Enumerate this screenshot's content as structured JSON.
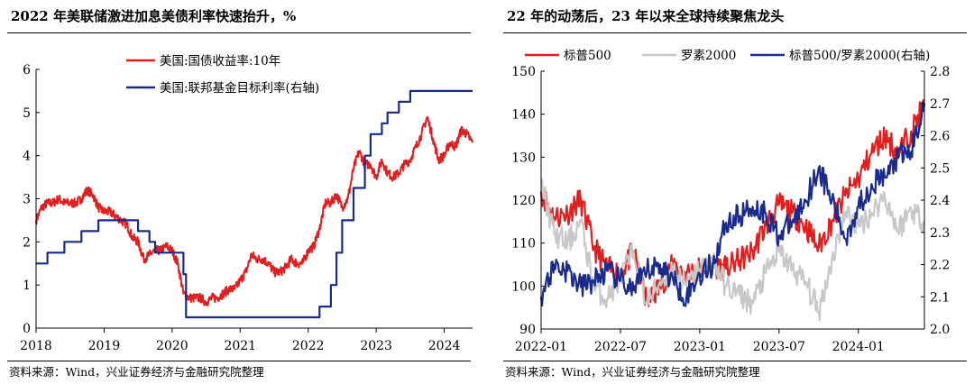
{
  "left": {
    "title": "2022 年美联储激进加息美债利率快速抬升，%",
    "source": "资料来源：Wind，兴业证券经济与金融研究院整理",
    "chart_data": {
      "type": "line",
      "x_ticks": [
        "2018",
        "2019",
        "2020",
        "2021",
        "2022",
        "2023",
        "2024"
      ],
      "xlim": [
        "2018-01",
        "2024-06"
      ],
      "ylim": [
        0,
        6
      ],
      "y_ticks": [
        "0",
        "1",
        "2",
        "3",
        "4",
        "5",
        "6"
      ],
      "y2lim": [
        0,
        6
      ],
      "y2_ticks": [],
      "legend_position": "top-center",
      "grid": false,
      "series": [
        {
          "name": "美国:国债收益率:10年",
          "axis": "left",
          "color": "#e02020",
          "x": [
            "2018-01",
            "2018-02",
            "2018-03",
            "2018-04",
            "2018-05",
            "2018-06",
            "2018-07",
            "2018-08",
            "2018-09",
            "2018-10",
            "2018-11",
            "2018-12",
            "2019-01",
            "2019-02",
            "2019-03",
            "2019-04",
            "2019-05",
            "2019-06",
            "2019-07",
            "2019-08",
            "2019-09",
            "2019-10",
            "2019-11",
            "2019-12",
            "2020-01",
            "2020-02",
            "2020-03",
            "2020-04",
            "2020-05",
            "2020-06",
            "2020-07",
            "2020-08",
            "2020-09",
            "2020-10",
            "2020-11",
            "2020-12",
            "2021-01",
            "2021-02",
            "2021-03",
            "2021-04",
            "2021-05",
            "2021-06",
            "2021-07",
            "2021-08",
            "2021-09",
            "2021-10",
            "2021-11",
            "2021-12",
            "2022-01",
            "2022-02",
            "2022-03",
            "2022-04",
            "2022-05",
            "2022-06",
            "2022-07",
            "2022-08",
            "2022-09",
            "2022-10",
            "2022-11",
            "2022-12",
            "2023-01",
            "2023-02",
            "2023-03",
            "2023-04",
            "2023-05",
            "2023-06",
            "2023-07",
            "2023-08",
            "2023-09",
            "2023-10",
            "2023-11",
            "2023-12",
            "2024-01",
            "2024-02",
            "2024-03",
            "2024-04",
            "2024-05",
            "2024-06"
          ],
          "values": [
            2.5,
            2.8,
            2.9,
            2.9,
            3.0,
            2.9,
            2.9,
            2.9,
            3.0,
            3.2,
            3.1,
            2.8,
            2.7,
            2.7,
            2.6,
            2.5,
            2.4,
            2.1,
            2.0,
            1.6,
            1.7,
            1.8,
            1.8,
            1.9,
            1.8,
            1.5,
            0.8,
            0.7,
            0.7,
            0.7,
            0.6,
            0.7,
            0.7,
            0.8,
            0.9,
            0.9,
            1.1,
            1.3,
            1.7,
            1.6,
            1.6,
            1.5,
            1.3,
            1.3,
            1.4,
            1.6,
            1.5,
            1.5,
            1.8,
            1.9,
            2.3,
            2.9,
            2.9,
            3.1,
            2.8,
            3.0,
            3.7,
            4.1,
            3.8,
            3.8,
            3.5,
            3.9,
            3.6,
            3.5,
            3.6,
            3.8,
            3.9,
            4.2,
            4.5,
            4.9,
            4.4,
            3.9,
            4.0,
            4.3,
            4.2,
            4.6,
            4.5,
            4.3
          ]
        },
        {
          "name": "美国:联邦基金目标利率(右轴)",
          "axis": "right",
          "color": "#1a2b8c",
          "x": [
            "2018-01",
            "2018-03",
            "2018-06",
            "2018-09",
            "2018-12",
            "2019-07",
            "2019-09",
            "2019-10",
            "2020-03",
            "2020-03-15",
            "2022-03",
            "2022-05",
            "2022-06",
            "2022-07",
            "2022-09",
            "2022-11",
            "2022-12",
            "2023-02",
            "2023-03",
            "2023-05",
            "2023-07",
            "2024-06"
          ],
          "values": [
            1.5,
            1.75,
            2.0,
            2.25,
            2.5,
            2.25,
            2.0,
            1.75,
            1.25,
            0.25,
            0.5,
            1.0,
            1.75,
            2.5,
            3.25,
            4.0,
            4.5,
            4.75,
            5.0,
            5.25,
            5.5,
            5.5
          ],
          "step": true
        }
      ]
    }
  },
  "right": {
    "title": "22 年的动荡后，23 年以来全球持续聚焦龙头",
    "source": "资料来源：Wind，兴业证券经济与金融研究院整理",
    "chart_data": {
      "type": "line",
      "x_ticks": [
        "2022-01",
        "2022-07",
        "2023-01",
        "2023-07",
        "2024-01"
      ],
      "xlim": [
        "2022-01",
        "2024-06"
      ],
      "ylim": [
        90,
        150
      ],
      "y_ticks": [
        "90",
        "100",
        "110",
        "120",
        "130",
        "140",
        "150"
      ],
      "y2lim": [
        2.0,
        2.8
      ],
      "y2_ticks": [
        "2.0",
        "2.1",
        "2.2",
        "2.3",
        "2.4",
        "2.5",
        "2.6",
        "2.7",
        "2.8"
      ],
      "legend_position": "top",
      "grid": false,
      "series": [
        {
          "name": "标普500",
          "axis": "left",
          "color": "#e02020",
          "x": [
            "2022-01",
            "2022-02",
            "2022-03",
            "2022-04",
            "2022-05",
            "2022-06",
            "2022-07",
            "2022-08",
            "2022-09",
            "2022-10",
            "2022-11",
            "2022-12",
            "2023-01",
            "2023-02",
            "2023-03",
            "2023-04",
            "2023-05",
            "2023-06",
            "2023-07",
            "2023-08",
            "2023-09",
            "2023-10",
            "2023-11",
            "2023-12",
            "2024-01",
            "2024-02",
            "2024-03",
            "2024-04",
            "2024-05",
            "2024-06"
          ],
          "values": [
            122,
            116,
            117,
            120,
            109,
            104,
            103,
            108,
            96,
            100,
            105,
            103,
            104,
            105,
            104,
            106,
            108,
            114,
            119,
            117,
            114,
            109,
            115,
            121,
            125,
            131,
            135,
            131,
            136,
            142
          ]
        },
        {
          "name": "罗素2000",
          "axis": "left",
          "color": "#c8c8c8",
          "x": [
            "2022-01",
            "2022-02",
            "2022-03",
            "2022-04",
            "2022-05",
            "2022-06",
            "2022-07",
            "2022-08",
            "2022-09",
            "2022-10",
            "2022-11",
            "2022-12",
            "2023-01",
            "2023-02",
            "2023-03",
            "2023-04",
            "2023-05",
            "2023-06",
            "2023-07",
            "2023-08",
            "2023-09",
            "2023-10",
            "2023-11",
            "2023-12",
            "2024-01",
            "2024-02",
            "2024-03",
            "2024-04",
            "2024-05",
            "2024-06"
          ],
          "values": [
            124,
            112,
            110,
            115,
            100,
            97,
            102,
            108,
            96,
            101,
            104,
            100,
            104,
            106,
            100,
            98,
            96,
            103,
            108,
            104,
            101,
            94,
            106,
            117,
            114,
            117,
            121,
            113,
            118,
            115
          ]
        },
        {
          "name": "标普500/罗素2000(右轴)",
          "axis": "right",
          "color": "#1a2b8c",
          "x": [
            "2022-01",
            "2022-02",
            "2022-03",
            "2022-04",
            "2022-05",
            "2022-06",
            "2022-07",
            "2022-08",
            "2022-09",
            "2022-10",
            "2022-11",
            "2022-12",
            "2023-01",
            "2023-02",
            "2023-03",
            "2023-04",
            "2023-05",
            "2023-06",
            "2023-07",
            "2023-08",
            "2023-09",
            "2023-10",
            "2023-11",
            "2023-12",
            "2024-01",
            "2024-02",
            "2024-03",
            "2024-04",
            "2024-05",
            "2024-06"
          ],
          "values": [
            2.1,
            2.2,
            2.18,
            2.13,
            2.15,
            2.18,
            2.15,
            2.12,
            2.18,
            2.2,
            2.15,
            2.1,
            2.17,
            2.2,
            2.33,
            2.35,
            2.38,
            2.36,
            2.29,
            2.33,
            2.4,
            2.5,
            2.4,
            2.28,
            2.38,
            2.45,
            2.47,
            2.53,
            2.55,
            2.7
          ]
        }
      ]
    }
  }
}
